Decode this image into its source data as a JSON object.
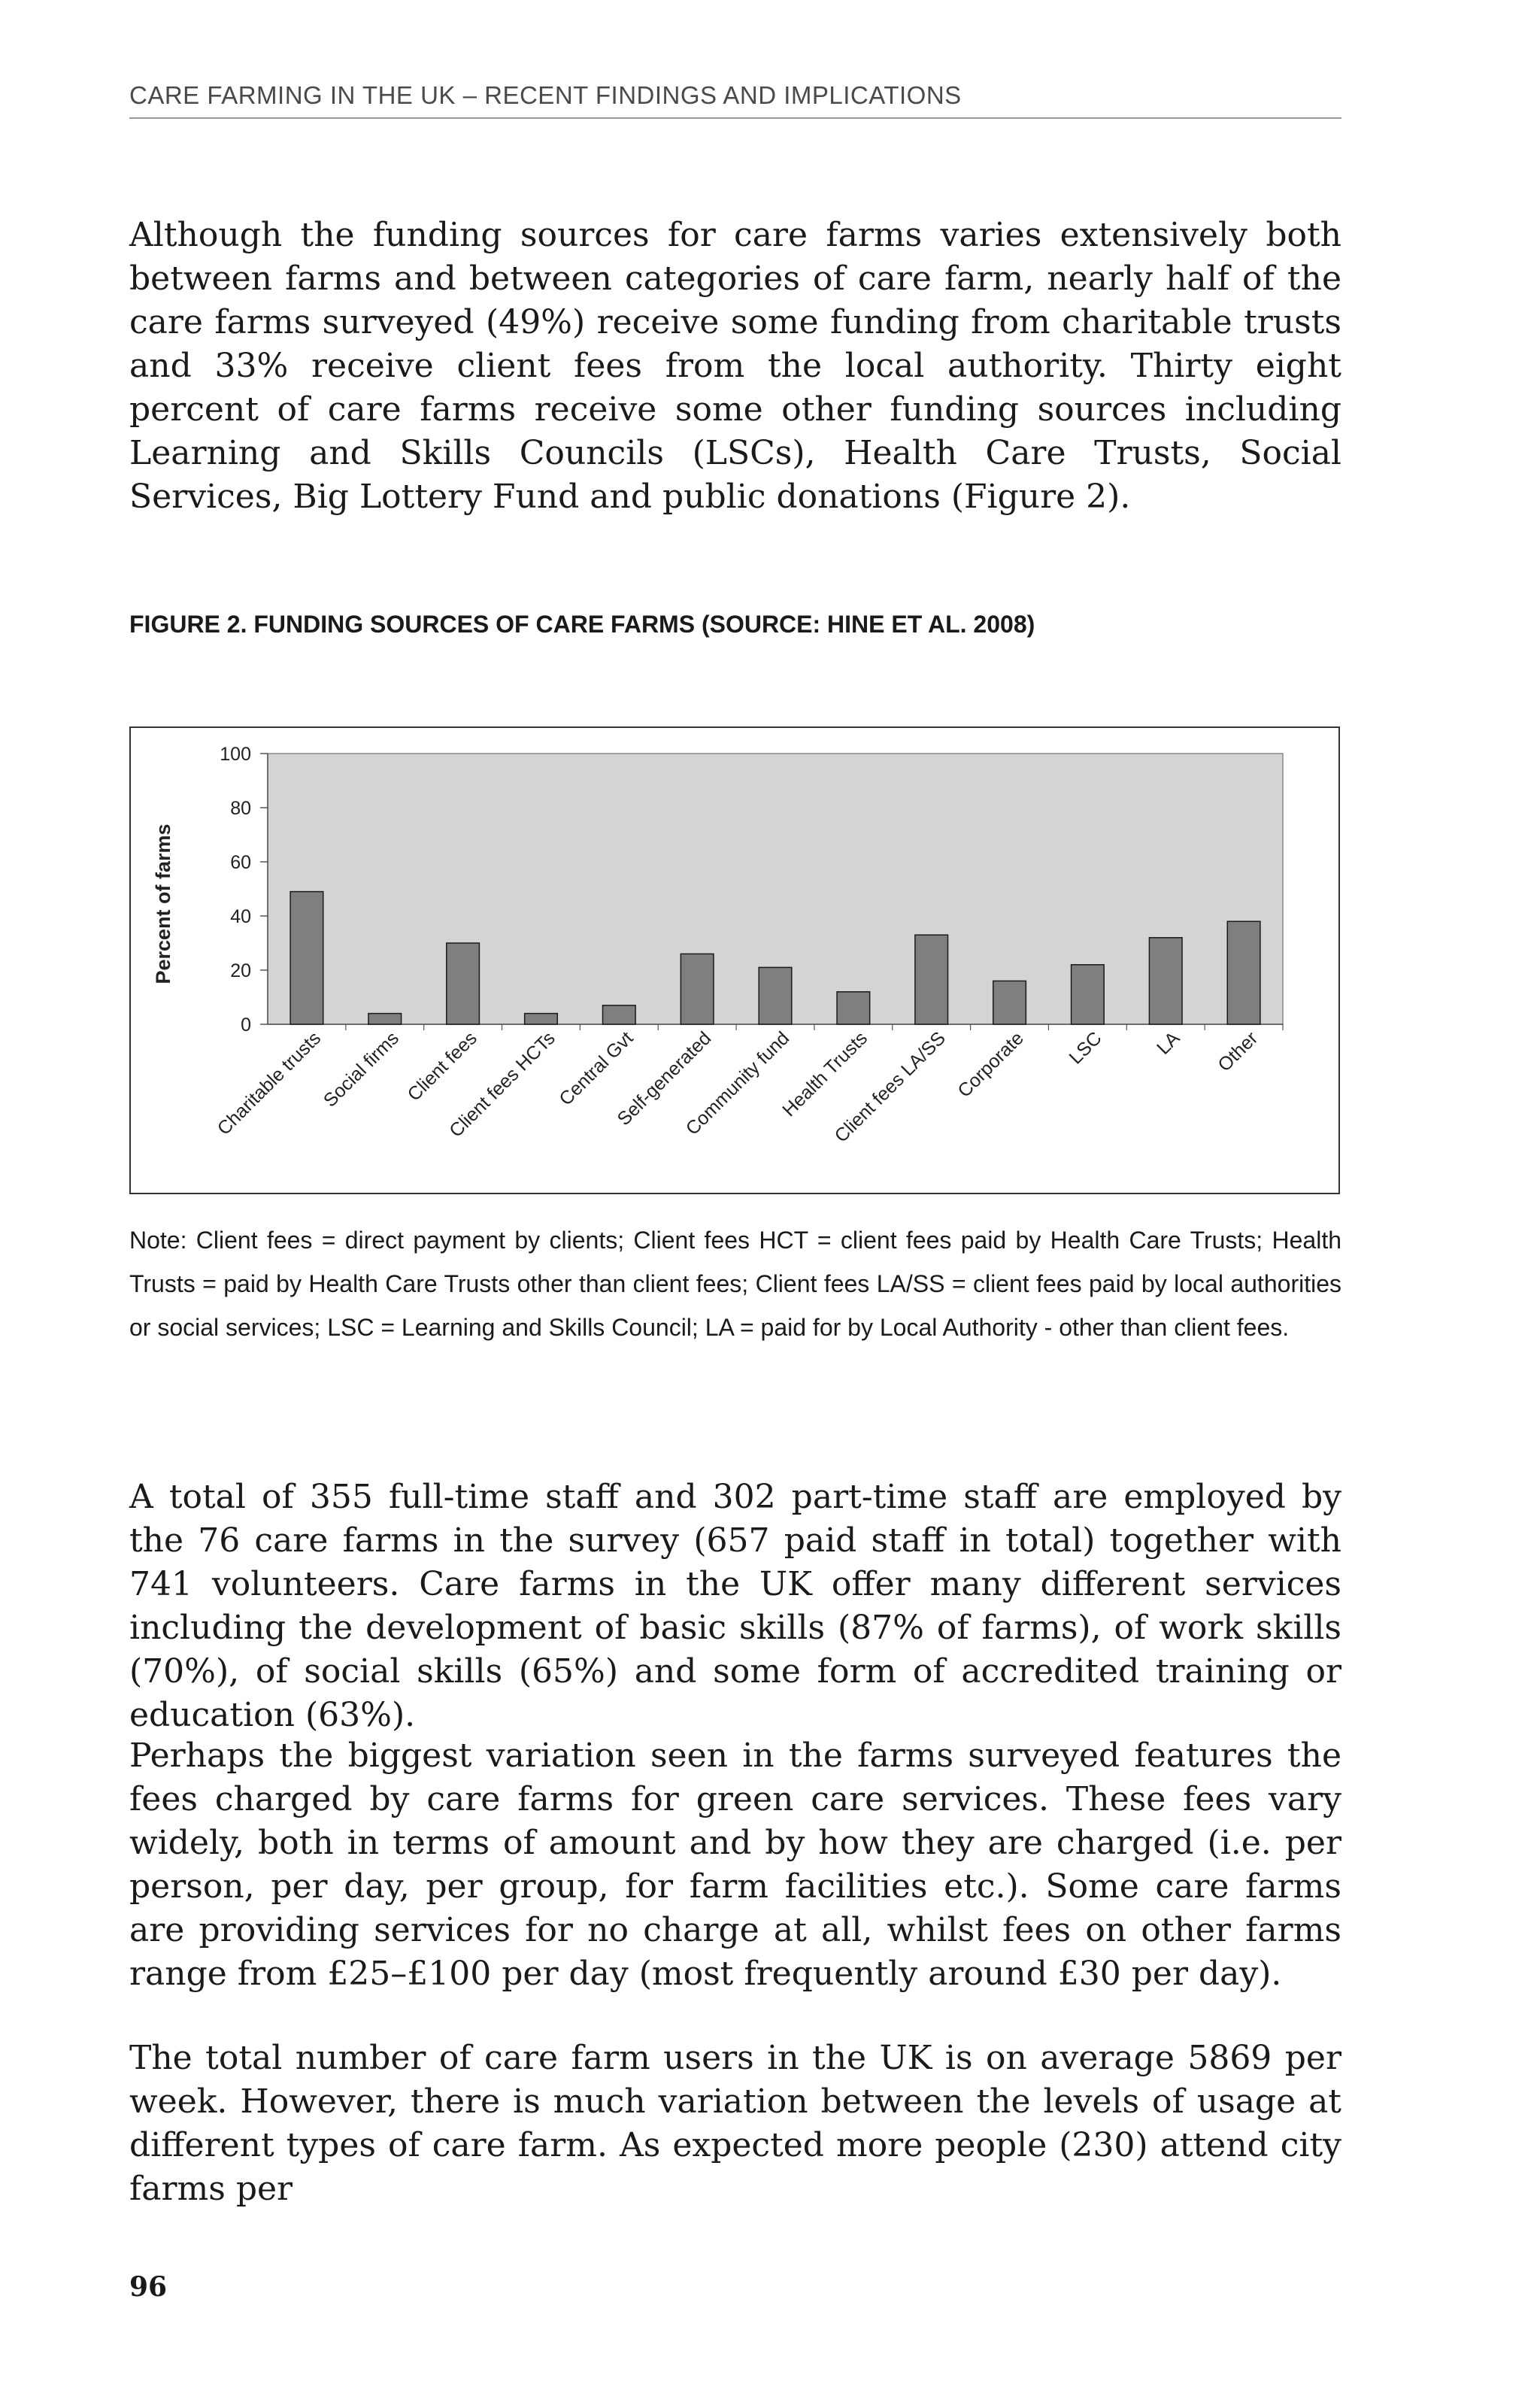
{
  "header": {
    "running_title": "CARE FARMING IN THE UK – RECENT FINDINGS AND IMPLICATIONS"
  },
  "body": {
    "para1": "Although the funding sources for care farms varies extensively both between farms and between categories of care farm, nearly half of the care farms surveyed (49%) receive some funding from charitable trusts and 33% receive client fees from the local authority. Thirty eight percent of care farms receive some other funding sources including Learning and Skills Councils (LSCs), Health Care Trusts, Social Services, Big Lottery Fund and public donations (Figure 2).",
    "para2": "A total of 355 full-time staff and 302 part-time staff are employed by the 76 care farms in the survey (657 paid staff in total) together with 741 volunteers. Care farms in the UK offer many different services including the development of basic skills (87% of farms), of work skills (70%), of social skills (65%) and some form of accredited training or education (63%).",
    "para3": "Perhaps the biggest variation seen in the farms surveyed features the fees charged by care farms for green care services. These fees vary widely, both in terms of amount and by how they are charged (i.e. per person, per day, per group, for farm facilities etc.). Some care farms are providing services for no charge at all, whilst fees on other farms range from £25–£100 per day (most frequently around £30 per day).",
    "para4": "The total number of care farm users in the UK is on average 5869 per week. However, there is much variation between the levels of usage at different types of care farm. As expected more people (230) attend city farms per"
  },
  "figure": {
    "caption": "FIGURE 2. FUNDING SOURCES OF CARE FARMS (SOURCE: HINE ET AL. 2008)",
    "note": "Note: Client fees = direct payment by clients; Client fees HCT = client fees paid by Health Care Trusts; Health Trusts = paid by Health Care Trusts other than client fees; Client fees LA/SS = client fees paid by local authorities or social services; LSC = Learning and Skills Council; LA = paid for by Local Authority - other than client fees."
  },
  "chart_data": {
    "type": "bar",
    "categories": [
      "Charitable trusts",
      "Social firms",
      "Client fees",
      "Client fees HCTs",
      "Central Gvt",
      "Self-generated",
      "Community fund",
      "Health Trusts",
      "Client fees LA/SS",
      "Corporate",
      "LSC",
      "LA",
      "Other"
    ],
    "values": [
      49,
      4,
      30,
      4,
      7,
      26,
      21,
      12,
      33,
      16,
      22,
      32,
      38
    ],
    "ylabel": "Percent of farms",
    "ylim": [
      0,
      100
    ],
    "yticks": [
      0,
      20,
      40,
      60,
      80,
      100
    ],
    "grid": false,
    "plot_background": "#d4d4d4",
    "bar_color": "#7f7f7f",
    "bar_edge_color": "#1a1a1a"
  },
  "footer": {
    "page_number": "96"
  }
}
